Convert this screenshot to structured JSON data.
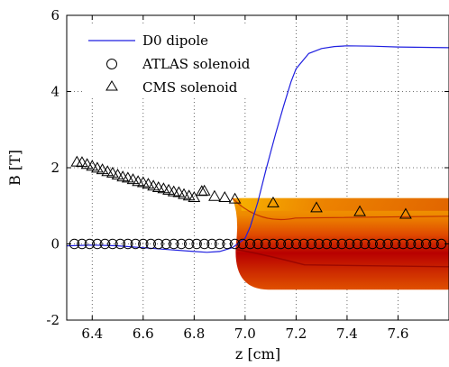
{
  "chart_data": {
    "type": "line",
    "xlabel": "z [cm]",
    "ylabel": "B [T]",
    "xlim": [
      6.3,
      7.8
    ],
    "ylim": [
      -2,
      6
    ],
    "x_ticks": [
      "6.4",
      "6.6",
      "6.8",
      "7.0",
      "7.2",
      "7.4",
      "7.6"
    ],
    "x_tick_values": [
      6.4,
      6.6,
      6.8,
      7.0,
      7.2,
      7.4,
      7.6
    ],
    "y_ticks": [
      "-2",
      "0",
      "2",
      "4",
      "6"
    ],
    "y_tick_values": [
      -2,
      0,
      2,
      4,
      6
    ],
    "grid": true,
    "legend_position": "top-left",
    "colors": {
      "d0_line": "#1f1fe0",
      "spine_dark": "#b80000",
      "spine_mid": "#e04a00",
      "spine_light": "#f3a200"
    },
    "series": [
      {
        "name": "D0 dipole",
        "style": "line",
        "x": [
          6.3,
          6.4,
          6.5,
          6.6,
          6.7,
          6.8,
          6.85,
          6.9,
          6.95,
          7.0,
          7.02,
          7.05,
          7.08,
          7.1,
          7.12,
          7.15,
          7.18,
          7.2,
          7.25,
          7.3,
          7.35,
          7.4,
          7.5,
          7.6,
          7.7,
          7.8
        ],
        "y": [
          -0.05,
          -0.03,
          -0.05,
          -0.1,
          -0.15,
          -0.2,
          -0.22,
          -0.2,
          -0.1,
          0.15,
          0.45,
          1.1,
          1.9,
          2.4,
          2.9,
          3.6,
          4.25,
          4.6,
          5.0,
          5.13,
          5.18,
          5.2,
          5.19,
          5.17,
          5.16,
          5.15
        ]
      },
      {
        "name": "ATLAS solenoid",
        "style": "circle",
        "x": [
          6.33,
          6.36,
          6.39,
          6.42,
          6.45,
          6.48,
          6.51,
          6.54,
          6.57,
          6.6,
          6.63,
          6.66,
          6.69,
          6.72,
          6.75,
          6.78,
          6.81,
          6.84,
          6.87,
          6.9,
          6.93,
          6.96,
          6.99,
          7.02,
          7.05,
          7.08,
          7.11,
          7.14,
          7.17,
          7.2,
          7.23,
          7.26,
          7.29,
          7.32,
          7.35,
          7.38,
          7.41,
          7.44,
          7.47,
          7.5,
          7.53,
          7.56,
          7.59,
          7.62,
          7.65,
          7.68,
          7.71,
          7.74,
          7.77
        ],
        "y": [
          0,
          0,
          0,
          0,
          0,
          0,
          0,
          0,
          0,
          0,
          0,
          0,
          0,
          0,
          0,
          0,
          0,
          0,
          0,
          0,
          0,
          0,
          0,
          0,
          0,
          0,
          0,
          0,
          0,
          0,
          0,
          0,
          0,
          0,
          0,
          0,
          0,
          0,
          0,
          0,
          0,
          0,
          0,
          0,
          0,
          0,
          0,
          0,
          0
        ]
      },
      {
        "name": "CMS solenoid",
        "style": "triangle",
        "x": [
          6.34,
          6.36,
          6.38,
          6.4,
          6.42,
          6.44,
          6.46,
          6.48,
          6.5,
          6.52,
          6.54,
          6.56,
          6.58,
          6.6,
          6.62,
          6.64,
          6.66,
          6.68,
          6.7,
          6.72,
          6.74,
          6.76,
          6.78,
          6.8,
          6.83,
          6.84,
          6.88,
          6.92,
          6.96,
          7.11,
          7.28,
          7.45,
          7.63
        ],
        "y": [
          2.15,
          2.14,
          2.09,
          2.04,
          1.99,
          1.95,
          1.9,
          1.86,
          1.81,
          1.76,
          1.73,
          1.69,
          1.64,
          1.61,
          1.57,
          1.52,
          1.48,
          1.45,
          1.41,
          1.37,
          1.35,
          1.3,
          1.26,
          1.22,
          1.38,
          1.39,
          1.25,
          1.22,
          1.18,
          1.08,
          0.95,
          0.85,
          0.78
        ]
      }
    ],
    "spine_image": {
      "x_range": [
        6.95,
        7.8
      ],
      "y_range": [
        -1.2,
        1.2
      ]
    }
  }
}
